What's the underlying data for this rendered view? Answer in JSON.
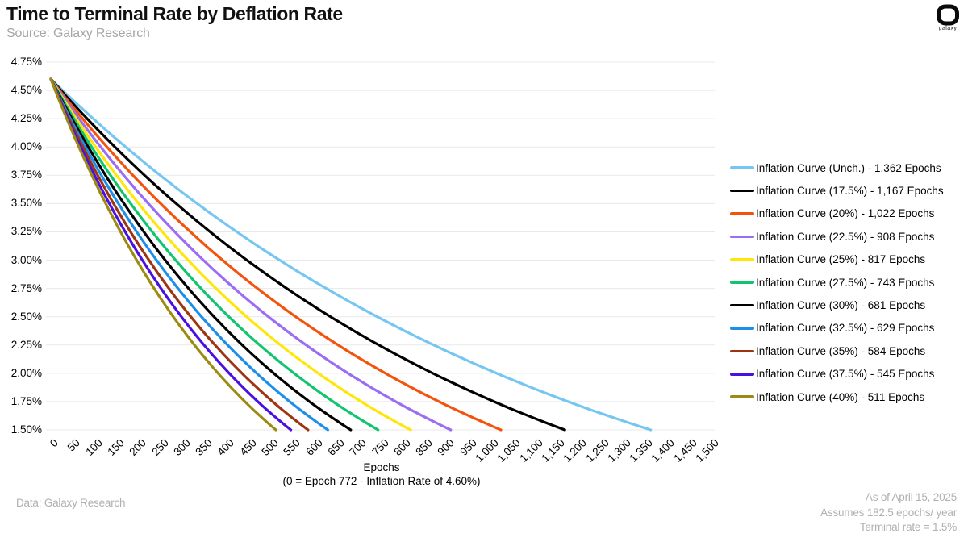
{
  "header": {
    "title": "Time to Terminal Rate by Deflation Rate",
    "source": "Source: Galaxy Research"
  },
  "logo": {
    "label": "galaxy"
  },
  "chart_data": {
    "type": "line",
    "title": "Time to Terminal Rate by Deflation Rate",
    "xlabel": "Epochs",
    "x_sublabel": "(0 = Epoch 772 - Inflation Rate of 4.60%)",
    "x_range": [
      0,
      1500
    ],
    "x_ticks": [
      "0",
      "50",
      "100",
      "150",
      "200",
      "250",
      "300",
      "350",
      "400",
      "450",
      "500",
      "550",
      "600",
      "650",
      "700",
      "750",
      "800",
      "850",
      "900",
      "950",
      "1,000",
      "1,050",
      "1,100",
      "1,150",
      "1,200",
      "1,250",
      "1,300",
      "1,350",
      "1,400",
      "1,450",
      "1,500"
    ],
    "y_ticks": [
      "4.75%",
      "4.50%",
      "4.25%",
      "4.00%",
      "3.75%",
      "3.50%",
      "3.25%",
      "3.00%",
      "2.75%",
      "2.50%",
      "2.25%",
      "2.00%",
      "1.75%",
      "1.50%"
    ],
    "y_range_pct": [
      1.5,
      4.75
    ],
    "start_rate_pct": 4.6,
    "terminal_rate_pct": 1.5,
    "grid": "horizontal",
    "legend_position": "right",
    "series": [
      {
        "name": "Inflation Curve (Unch.) - 1,362 Epochs",
        "deflation": "Unch.",
        "terminal_epochs": 1362,
        "color": "#76C6F2"
      },
      {
        "name": "Inflation Curve (17.5%) - 1,167 Epochs",
        "deflation": "17.5%",
        "terminal_epochs": 1167,
        "color": "#000000"
      },
      {
        "name": "Inflation Curve (20%) - 1,022 Epochs",
        "deflation": "20%",
        "terminal_epochs": 1022,
        "color": "#F4530C"
      },
      {
        "name": "Inflation Curve (22.5%) - 908 Epochs",
        "deflation": "22.5%",
        "terminal_epochs": 908,
        "color": "#9A6DF2"
      },
      {
        "name": "Inflation Curve (25%) - 817 Epochs",
        "deflation": "25%",
        "terminal_epochs": 817,
        "color": "#FFE606"
      },
      {
        "name": "Inflation Curve (27.5%) - 743 Epochs",
        "deflation": "27.5%",
        "terminal_epochs": 743,
        "color": "#10C56E"
      },
      {
        "name": "Inflation Curve (30%) - 681 Epochs",
        "deflation": "30%",
        "terminal_epochs": 681,
        "color": "#000000"
      },
      {
        "name": "Inflation Curve (32.5%) - 629 Epochs",
        "deflation": "32.5%",
        "terminal_epochs": 629,
        "color": "#1D8FE8"
      },
      {
        "name": "Inflation Curve (35%) - 584 Epochs",
        "deflation": "35%",
        "terminal_epochs": 584,
        "color": "#9E3512"
      },
      {
        "name": "Inflation Curve (37.5%) - 545 Epochs",
        "deflation": "37.5%",
        "terminal_epochs": 545,
        "color": "#4A10E2"
      },
      {
        "name": "Inflation Curve (40%) - 511 Epochs",
        "deflation": "40%",
        "terminal_epochs": 511,
        "color": "#9C8B10"
      }
    ]
  },
  "footer": {
    "left": "Data: Galaxy Research",
    "right": [
      "As of April 15, 2025",
      "Assumes 182.5 epochs/ year",
      "Terminal rate = 1.5%"
    ]
  }
}
